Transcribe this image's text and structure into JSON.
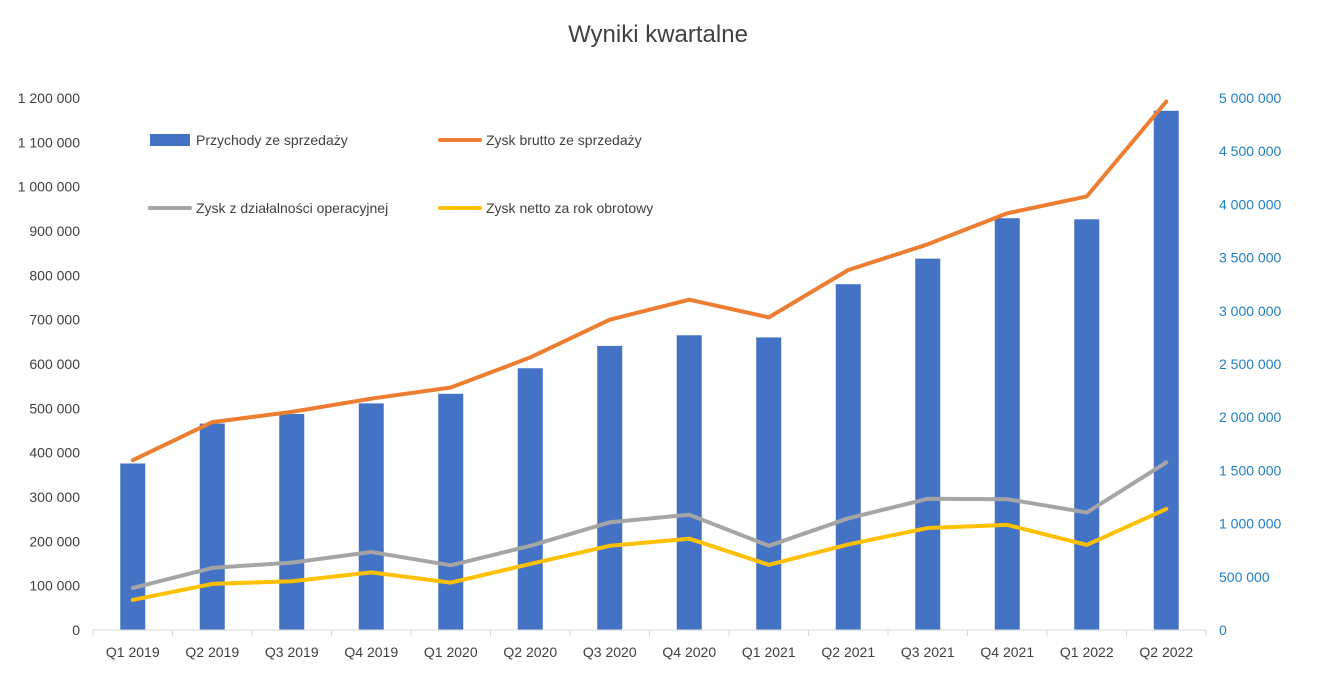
{
  "chart_data": {
    "type": "bar",
    "title": "Wyniki kwartalne",
    "categories": [
      "Q1 2019",
      "Q2 2019",
      "Q3 2019",
      "Q4 2019",
      "Q1 2020",
      "Q2 2020",
      "Q3 2020",
      "Q4 2020",
      "Q1 2021",
      "Q2 2021",
      "Q3 2021",
      "Q4 2021",
      "Q1 2022",
      "Q2 2022"
    ],
    "y_left": {
      "ylim": [
        0,
        1200000
      ],
      "ticks": [
        0,
        100000,
        200000,
        300000,
        400000,
        500000,
        600000,
        700000,
        800000,
        900000,
        1000000,
        1100000,
        1200000
      ],
      "tick_labels": [
        "0",
        "100 000",
        "200 000",
        "300 000",
        "400 000",
        "500 000",
        "600 000",
        "700 000",
        "800 000",
        "900 000",
        "1 000 000",
        "1 100 000",
        "1 200 000"
      ]
    },
    "y_right": {
      "ylim": [
        0,
        5000000
      ],
      "ticks": [
        0,
        500000,
        1000000,
        1500000,
        2000000,
        2500000,
        3000000,
        3500000,
        4000000,
        4500000,
        5000000
      ],
      "tick_labels": [
        "0",
        "500 000",
        "1 000 000",
        "1 500 000",
        "2 000 000",
        "2 500 000",
        "3 000 000",
        "3 500 000",
        "4 000 000",
        "4 500 000",
        "5 000 000"
      ],
      "color": "#1f7fc1"
    },
    "grid": false,
    "legend_position": "top-left",
    "series": [
      {
        "name": "Przychody ze sprzedaży",
        "type": "bar",
        "axis": "right",
        "color": "#4472c4",
        "values": [
          1565000,
          1940000,
          2030000,
          2130000,
          2220000,
          2460000,
          2670000,
          2770000,
          2750000,
          3250000,
          3490000,
          3870000,
          3860000,
          4880000
        ]
      },
      {
        "name": "Zysk brutto ze sprzedaży",
        "type": "line",
        "axis": "left",
        "color": "#ed7d31",
        "values": [
          383000,
          469000,
          492000,
          522000,
          547000,
          615000,
          700000,
          745000,
          705000,
          812000,
          870000,
          940000,
          978000,
          1192000
        ]
      },
      {
        "name": "Zysk z działalności operacyjnej",
        "type": "line",
        "axis": "left",
        "color": "#a5a5a5",
        "values": [
          95000,
          140000,
          152000,
          176000,
          146000,
          190000,
          243000,
          260000,
          190000,
          252000,
          296000,
          295000,
          265000,
          378000
        ]
      },
      {
        "name": "Zysk netto za rok obrotowy",
        "type": "line",
        "axis": "left",
        "color": "#ffc000",
        "values": [
          68000,
          104000,
          110000,
          130000,
          107000,
          149000,
          190000,
          206000,
          147000,
          193000,
          230000,
          237000,
          192000,
          273000
        ]
      }
    ]
  }
}
